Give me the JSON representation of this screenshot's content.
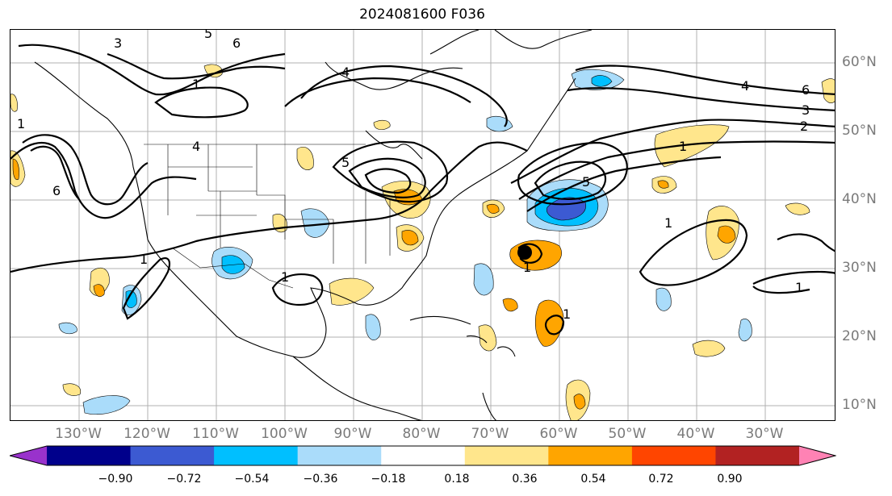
{
  "title": "2024081600 F036",
  "map": {
    "lon_labels": [
      "130°W",
      "120°W",
      "110°W",
      "100°W",
      "90°W",
      "80°W",
      "70°W",
      "60°W",
      "50°W",
      "40°W",
      "30°W"
    ],
    "lat_labels": [
      "60°N",
      "50°N",
      "40°N",
      "30°N",
      "20°N",
      "10°N"
    ],
    "contour_labels": [
      "3",
      "5",
      "6",
      "1",
      "4",
      "1",
      "4",
      "6",
      "5",
      "4",
      "6",
      "3",
      "2",
      "1",
      "1",
      "1",
      "1",
      "5",
      "1",
      "1",
      "1"
    ],
    "storm_marker_color": "#000000",
    "grid_color": "#b0b0b0",
    "coast_color": "#000000"
  },
  "colorbar": {
    "colors": [
      "#9932cc",
      "#00008b",
      "#3c5ad2",
      "#00bfff",
      "#aadcfa",
      "#ffffff",
      "#ffe68c",
      "#ffa500",
      "#ff4500",
      "#b22222",
      "#ff82b4"
    ],
    "ticks": [
      "−0.90",
      "−0.72",
      "−0.54",
      "−0.36",
      "−0.18",
      "0.18",
      "0.36",
      "0.54",
      "0.72",
      "0.90"
    ]
  }
}
